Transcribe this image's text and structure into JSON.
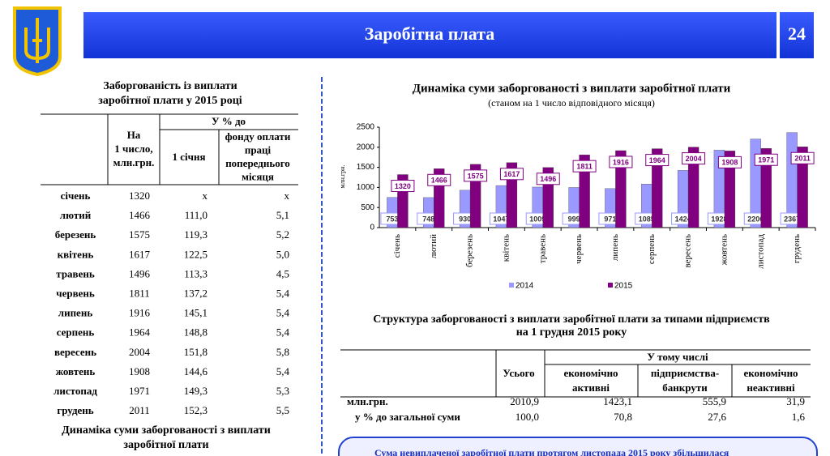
{
  "header": {
    "title": "Заробітна плата",
    "page": "24"
  },
  "left_table": {
    "title": [
      "Заборгованість із виплати",
      "заробітної плати у 2015 році"
    ],
    "headers": {
      "value": [
        "На",
        "1 число,",
        "млн.грн."
      ],
      "percent": "У % до",
      "jan": "1 січня",
      "prev": [
        "фонду оплати",
        "праці",
        "попереднього",
        "місяця"
      ]
    },
    "rows": [
      [
        "січень",
        "1320",
        "x",
        "x"
      ],
      [
        "лютий",
        "1466",
        "111,0",
        "5,1"
      ],
      [
        "березень",
        "1575",
        "119,3",
        "5,2"
      ],
      [
        "квітень",
        "1617",
        "122,5",
        "5,0"
      ],
      [
        "травень",
        "1496",
        "113,3",
        "4,5"
      ],
      [
        "червень",
        "1811",
        "137,2",
        "5,4"
      ],
      [
        "липень",
        "1916",
        "145,1",
        "5,4"
      ],
      [
        "серпень",
        "1964",
        "148,8",
        "5,4"
      ],
      [
        "вересень",
        "2004",
        "151,8",
        "5,8"
      ],
      [
        "жовтень",
        "1908",
        "144,6",
        "5,4"
      ],
      [
        "листопад",
        "1971",
        "149,3",
        "5,3"
      ],
      [
        "грудень",
        "2011",
        "152,3",
        "5,5"
      ]
    ],
    "footer": [
      "Динаміка суми заборгованості з виплати",
      "заробітної плати"
    ]
  },
  "chart_data": {
    "type": "bar",
    "title": "Динаміка суми заборгованості з виплати заробітної плати",
    "subtitle": "(станом на 1 число відповідного місяця)",
    "y_label": "млн.грн.",
    "categories": [
      "січень",
      "лютий",
      "березень",
      "квітень",
      "травень",
      "червень",
      "липень",
      "серпень",
      "вересень",
      "жовтень",
      "листопад",
      "грудень"
    ],
    "series": [
      {
        "name": "2014",
        "color": "#9999ff",
        "values": [
          753,
          748,
          930,
          1047,
          1009,
          999,
          971,
          1085,
          1424,
          1928,
          2206,
          2367
        ]
      },
      {
        "name": "2015",
        "color": "#800080",
        "values": [
          1320,
          1466,
          1575,
          1617,
          1496,
          1811,
          1916,
          1964,
          2004,
          1908,
          1971,
          2011
        ]
      }
    ],
    "ylim": [
      0,
      2500
    ],
    "yticks": [
      0,
      500,
      1000,
      1500,
      2000,
      2500
    ],
    "grid": false,
    "legend": "bottom"
  },
  "bottom_table": {
    "title": [
      "Структура заборгованості з виплати заробітної плати за типами підприємств",
      "на 1 грудня 2015 року"
    ],
    "headers": {
      "total": "Усього",
      "group": "У тому числі",
      "cols": [
        [
          "економічно",
          "активні"
        ],
        [
          "підприємства-",
          "банкрути"
        ],
        [
          "економічно",
          "неактивні"
        ]
      ]
    },
    "rows": [
      [
        "млн.грн.",
        "2010,9",
        "1423,1",
        "555,9",
        "31,9"
      ],
      [
        "у % до загальної суми",
        "100,0",
        "70,8",
        "27,6",
        "1,6"
      ]
    ]
  },
  "note": "Сума невиплаченої заробітної плати протягом листопада 2015 року збільшилася"
}
